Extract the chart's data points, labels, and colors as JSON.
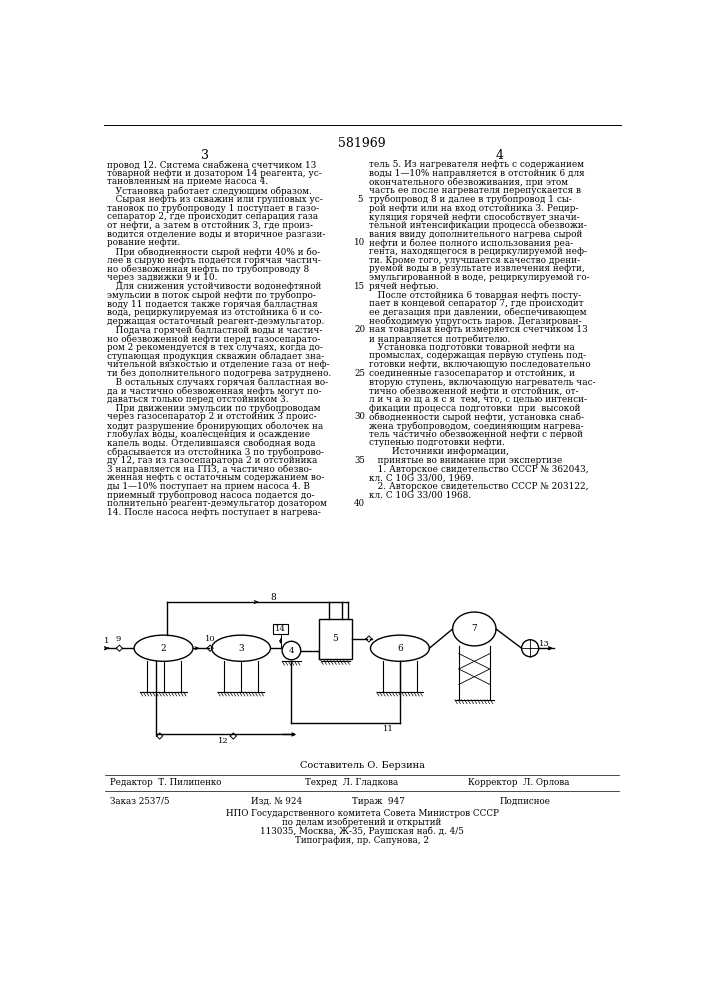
{
  "patent_number": "581969",
  "col1_text": [
    "провод 12. Система снабжена счетчиком 13",
    "товарной нефти и дозатором 14 реагента, ус-",
    "тановленным на приеме насоса 4.",
    "   Установка работает следующим образом.",
    "   Сырая нефть из скважин или групповых ус-",
    "тановок по трубопроводу 1 поступает в газо-",
    "сепаратор 2, где происходит сепарация газа",
    "от нефти, а затем в отстойник 3, где произ-",
    "водится отделение воды и вторичное разгази-",
    "рование нефти.",
    "   При обводненности сырой нефти 40% и бо-",
    "лее в сырую нефть подается горячая частич-",
    "но обезвоженная нефть по трубопроводу 8",
    "через задвижки 9 и 10.",
    "   Для снижения устойчивости водонефтяной",
    "эмульсии в поток сырой нефти по трубопро-",
    "воду 11 подается также горячая балластная",
    "вода, рециркулируемая из отстойника 6 и со-",
    "держащая остаточный реагент-деэмульгатор.",
    "   Подача горячей балластной воды и частич-",
    "но обезвоженной нефти перед газосепарато-",
    "ром 2 рекомендуется в тех случаях, когда до-",
    "ступающая продукция скважин обладает зна-",
    "чительной вязкостью и отделение газа от неф-",
    "ти без дополнительного подогрева затруднено.",
    "   В остальных случаях горячая балластная во-",
    "да и частично обезвоженная нефть могут по-",
    "даваться только перед отстойником 3.",
    "   При движении эмульсии по трубопроводам",
    "через газосепаратор 2 и отстойник 3 проис-",
    "ходит разрушение бронирующих оболочек на",
    "глобулах воды, коалесценция и осаждение",
    "капель воды. Отделившаяся свободная вода",
    "сбрасывается из отстойника 3 по трубопрово-",
    "ду 12, газ из газосепаратора 2 и отстойника",
    "3 направляется на ГПЗ, а частично обезво-",
    "женная нефть с остаточным содержанием во-",
    "ды 1—10% поступает на прием насоса 4. В",
    "приемный трубопровод насоса подается до-",
    "полнительно реагент-деэмульгатор дозатором",
    "14. После насоса нефть поступает в нагрева-"
  ],
  "col2_text": [
    "тель 5. Из нагревателя нефть с содержанием",
    "воды 1—10% направляется в отстойник 6 для",
    "окончательного обезвоживания, при этом",
    "часть ее после нагревателя перепускается в",
    "трубопровод 8 и далее в трубопровод 1 сы-",
    "рой нефти или на вход отстойника 3. Рецир-",
    "куляция горячей нефти способствует значи-",
    "тельной интенсификации процесса обезвожи-",
    "вания ввиду дополнительного нагрева сырой",
    "нефти и более полного использования реа-",
    "гента, находящегося в рециркулируемой неф-",
    "ти. Кроме того, улучшается качество дрени-",
    "руемой воды в результате извлечения нефти,",
    "эмульгированной в воде, рециркулируемой го-",
    "рячей нефтью.",
    "   После отстойника 6 товарная нефть посту-",
    "пает в концевой сепаратор 7, где происходит",
    "ее дегазация при давлении, обеспечивающем",
    "необходимую упругость паров. Дегазирован-",
    "ная товарная нефть измеряется счетчиком 13",
    "и направляется потребителю.",
    "   Установка подготовки товарной нефти на",
    "промыслах, содержащая первую ступень под-",
    "готовки нефти, включающую последовательно",
    "соединенные газосепаратор и отстойник, и",
    "вторую ступень, включающую нагреватель час-",
    "тично обезвоженной нефти и отстойник, от-",
    "л и ч а ю щ а я с я  тем, что, с целью интенси-",
    "фикации процесса подготовки  при  высокой",
    "обводненности сырой нефти, установка снаб-",
    "жена трубопроводом, соединяющим нагрева-",
    "тель частично обезвоженной нефти с первой",
    "ступенью подготовки нефти.",
    "        Источники информации,",
    "   принятые во внимание при экспертизе",
    "   1. Авторское свидетельство СССР № 362043,",
    "кл. С 10G 33/00, 1969.",
    "   2. Авторское свидетельство СССР № 203122,",
    "кл. С 10G 33/00 1968."
  ],
  "line_numbers": [
    5,
    10,
    15,
    20,
    25,
    30,
    35,
    40
  ],
  "footer_author": "Составитель О. Берзина",
  "footer_editor": "Редактор  Т. Пилипенко",
  "footer_tech": "Техред  Л. Гладкова",
  "footer_corrector": "Корректор  Л. Орлова",
  "footer_order": "Заказ 2537/5",
  "footer_issue": "Изд. № 924",
  "footer_print": "Тираж  947",
  "footer_signed": "Подписное",
  "footer_org": "НПО Государственного комитета Совета Министров СССР",
  "footer_org2": "по делам изобретений и открытий",
  "footer_addr": "113035, Москва, Ж-35, Раушская наб. д. 4/5",
  "footer_print_house": "Типография, пр. Сапунова, 2",
  "bg_color": "#ffffff",
  "text_color": "#000000"
}
